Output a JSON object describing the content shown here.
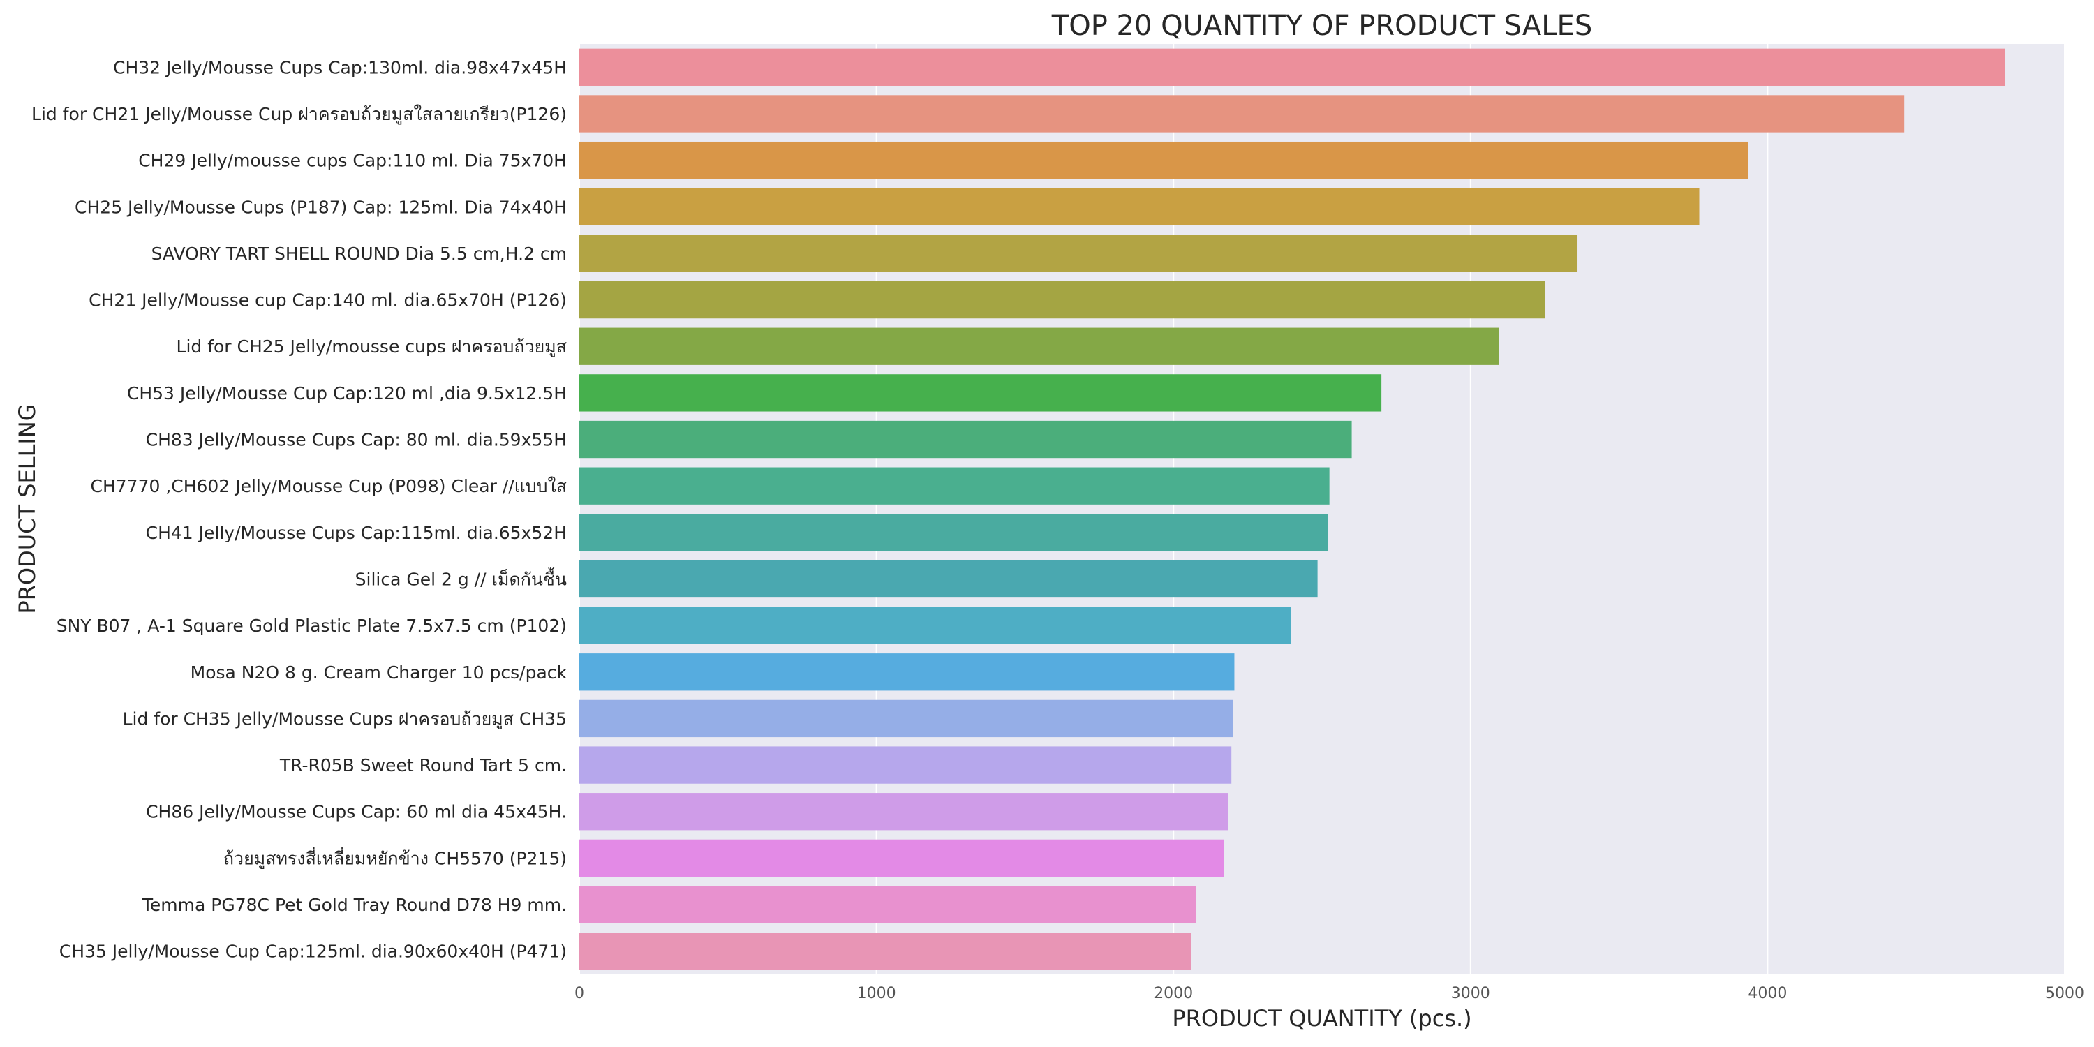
{
  "chart_data": {
    "type": "bar",
    "orientation": "horizontal",
    "title": "TOP 20 QUANTITY OF PRODUCT SALES",
    "xlabel": "PRODUCT QUANTITY (pcs.)",
    "ylabel": "PRODUCT SELLING",
    "xlim": [
      0,
      5000
    ],
    "xticks": [
      0,
      1000,
      2000,
      3000,
      4000,
      5000
    ],
    "grid": true,
    "categories": [
      "CH32 Jelly/Mousse Cups Cap:130ml. dia.98x47x45H",
      "Lid for CH21 Jelly/Mousse Cup ฝาครอบถ้วยมูสใสลายเกรียว(P126)",
      "CH29 Jelly/mousse cups Cap:110 ml. Dia 75x70H",
      "CH25  Jelly/Mousse Cups (P187) Cap: 125ml. Dia 74x40H",
      "SAVORY TART SHELL ROUND Dia 5.5 cm,H.2 cm",
      "CH21  Jelly/Mousse cup Cap:140 ml. dia.65x70H (P126)",
      "Lid for CH25 Jelly/mousse cups ฝาครอบถ้วยมูส",
      "CH53 Jelly/Mousse Cup Cap:120 ml ,dia 9.5x12.5H",
      "CH83 Jelly/Mousse Cups Cap: 80 ml. dia.59x55H",
      "CH7770 ,CH602 Jelly/Mousse Cup (P098) Clear //แบบใส",
      "CH41 Jelly/Mousse Cups Cap:115ml. dia.65x52H",
      "Silica Gel 2 g // เม็ดกันชื้น",
      "SNY B07 , A-1 Square Gold Plastic Plate 7.5x7.5 cm (P102)",
      "Mosa N2O 8 g. Cream Charger 10 pcs/pack",
      "Lid for CH35 Jelly/Mousse Cups ฝาครอบถ้วยมูส CH35",
      "TR-R05B Sweet Round Tart 5 cm.",
      "CH86 Jelly/Mousse Cups Cap: 60 ml dia 45x45H.",
      "ถ้วยมูสทรงสี่เหลี่ยมหยักข้าง CH5570 (P215)",
      "Temma PG78C Pet Gold Tray Round D78 H9 mm.",
      "CH35 Jelly/Mousse Cup Cap:125ml. dia.90x60x40H (P471)"
    ],
    "values": [
      4800,
      4460,
      3935,
      3770,
      3360,
      3250,
      3095,
      2700,
      2600,
      2525,
      2520,
      2485,
      2395,
      2205,
      2200,
      2195,
      2185,
      2170,
      2075,
      2060
    ],
    "colors": [
      "#ec8f9b",
      "#e69380",
      "#d99648",
      "#c9a042",
      "#b2a444",
      "#a4a543",
      "#84a846",
      "#46b04d",
      "#4bae7b",
      "#4aaf8f",
      "#4aaba0",
      "#4aa8b0",
      "#4eaec5",
      "#56acdf",
      "#95aee7",
      "#b6a7ec",
      "#cf9ce8",
      "#e38ae6",
      "#e891cf",
      "#e895b5"
    ]
  }
}
